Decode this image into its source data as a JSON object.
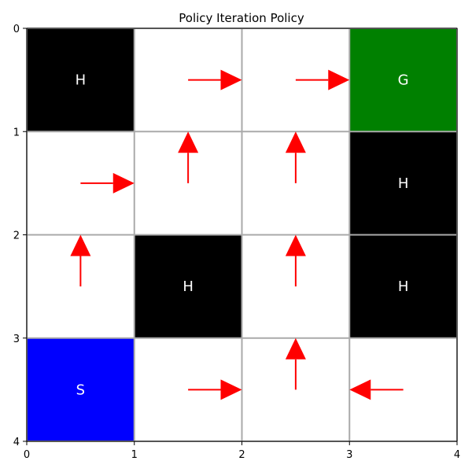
{
  "chart_data": {
    "type": "heatmap",
    "title": "Policy Iteration Policy",
    "xlabel": "",
    "ylabel": "",
    "xlim": [
      0,
      4
    ],
    "ylim": [
      4,
      0
    ],
    "x_ticks": [
      "0",
      "1",
      "2",
      "3",
      "4"
    ],
    "y_ticks": [
      "0",
      "1",
      "2",
      "3",
      "4"
    ],
    "grid": true,
    "colors": {
      "hole": "#000000",
      "goal": "#008000",
      "start": "#0000ff",
      "free": "#ffffff",
      "arrow": "#ff0000",
      "grid": "#aaaaaa",
      "cell_text": "#ffffff"
    },
    "grid_cells": [
      [
        {
          "type": "hole",
          "label": "H",
          "action": null
        },
        {
          "type": "free",
          "label": "",
          "action": "right"
        },
        {
          "type": "free",
          "label": "",
          "action": "right"
        },
        {
          "type": "goal",
          "label": "G",
          "action": null
        }
      ],
      [
        {
          "type": "free",
          "label": "",
          "action": "right"
        },
        {
          "type": "free",
          "label": "",
          "action": "up"
        },
        {
          "type": "free",
          "label": "",
          "action": "up"
        },
        {
          "type": "hole",
          "label": "H",
          "action": null
        }
      ],
      [
        {
          "type": "free",
          "label": "",
          "action": "up"
        },
        {
          "type": "hole",
          "label": "H",
          "action": null
        },
        {
          "type": "free",
          "label": "",
          "action": "up"
        },
        {
          "type": "hole",
          "label": "H",
          "action": null
        }
      ],
      [
        {
          "type": "start",
          "label": "S",
          "action": null
        },
        {
          "type": "free",
          "label": "",
          "action": "right"
        },
        {
          "type": "free",
          "label": "",
          "action": "up"
        },
        {
          "type": "free",
          "label": "",
          "action": "left"
        }
      ]
    ]
  }
}
